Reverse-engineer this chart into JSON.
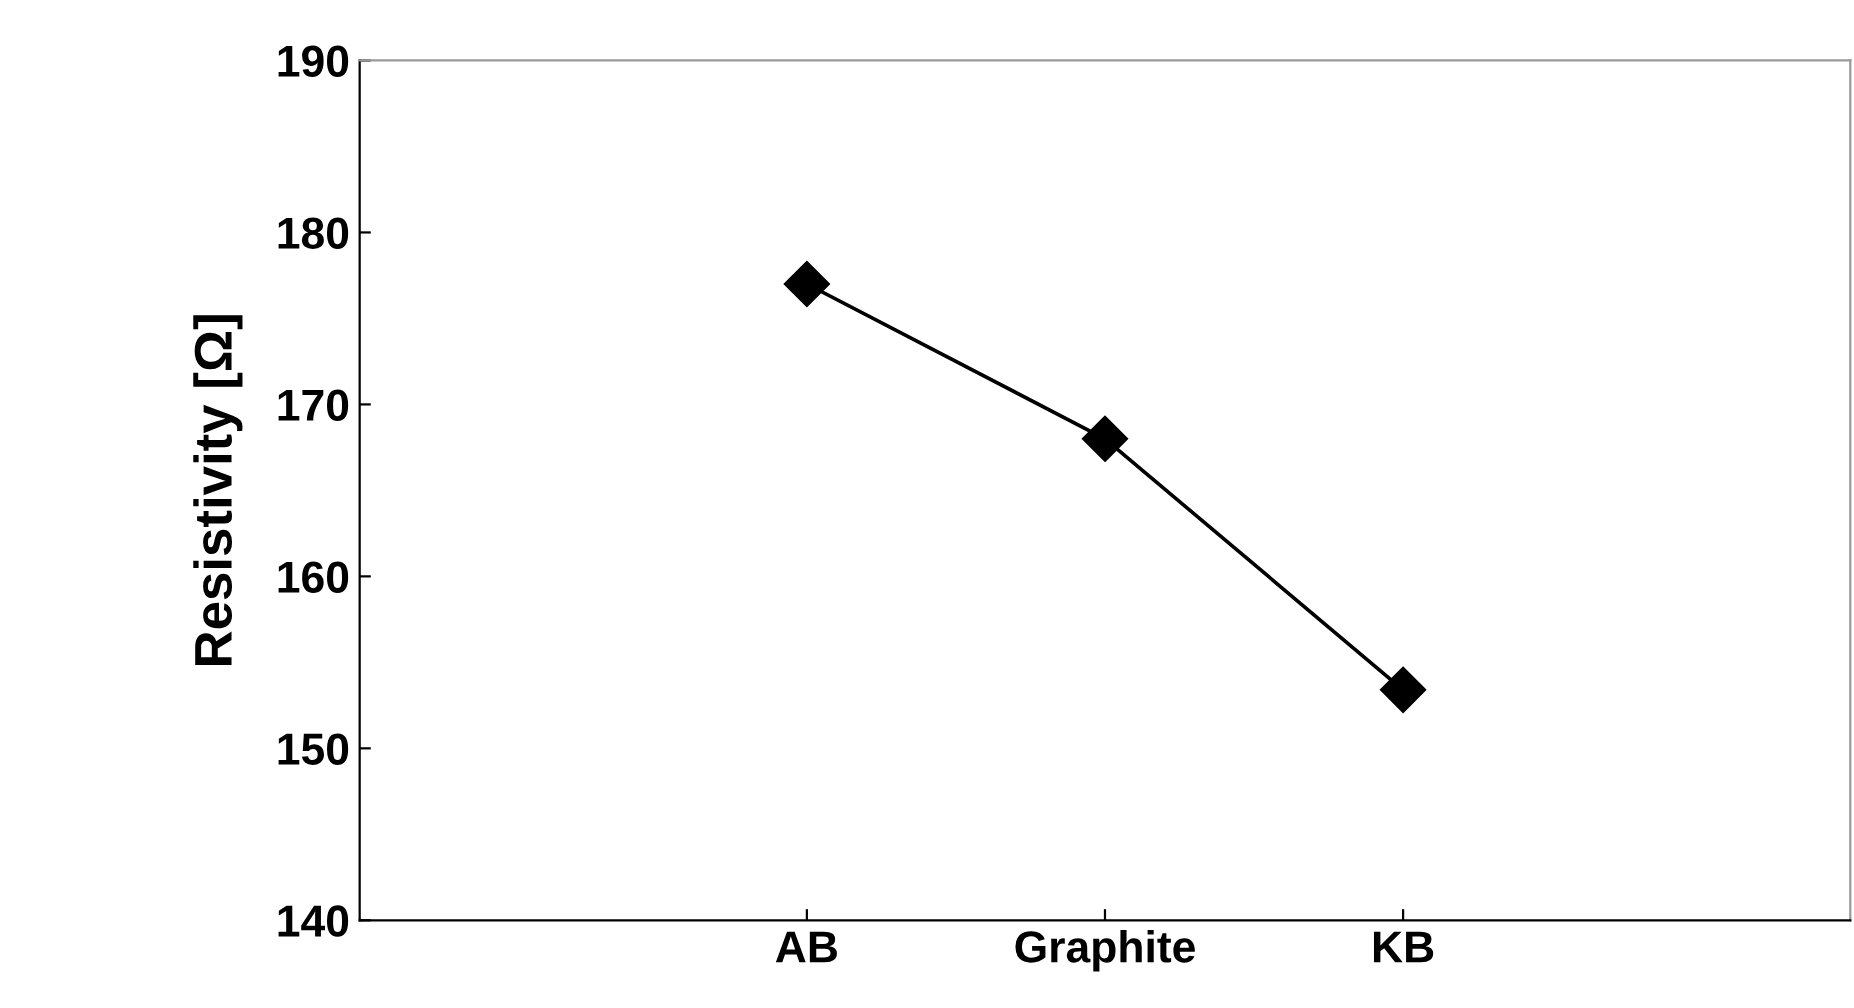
{
  "chart_data": {
    "type": "line",
    "ylabel": "Resistivity [Ω]",
    "categories": [
      null,
      "AB",
      "Graphite",
      "KB",
      null
    ],
    "series": [
      {
        "color": "#000000",
        "values": [
          null,
          177,
          168,
          153.4,
          null
        ]
      }
    ],
    "ylim": [
      140,
      190
    ],
    "yticks": [
      140,
      150,
      160,
      170,
      180,
      190
    ],
    "marker": "diamond",
    "line_style": "solid",
    "grid": false,
    "legend": false
  }
}
